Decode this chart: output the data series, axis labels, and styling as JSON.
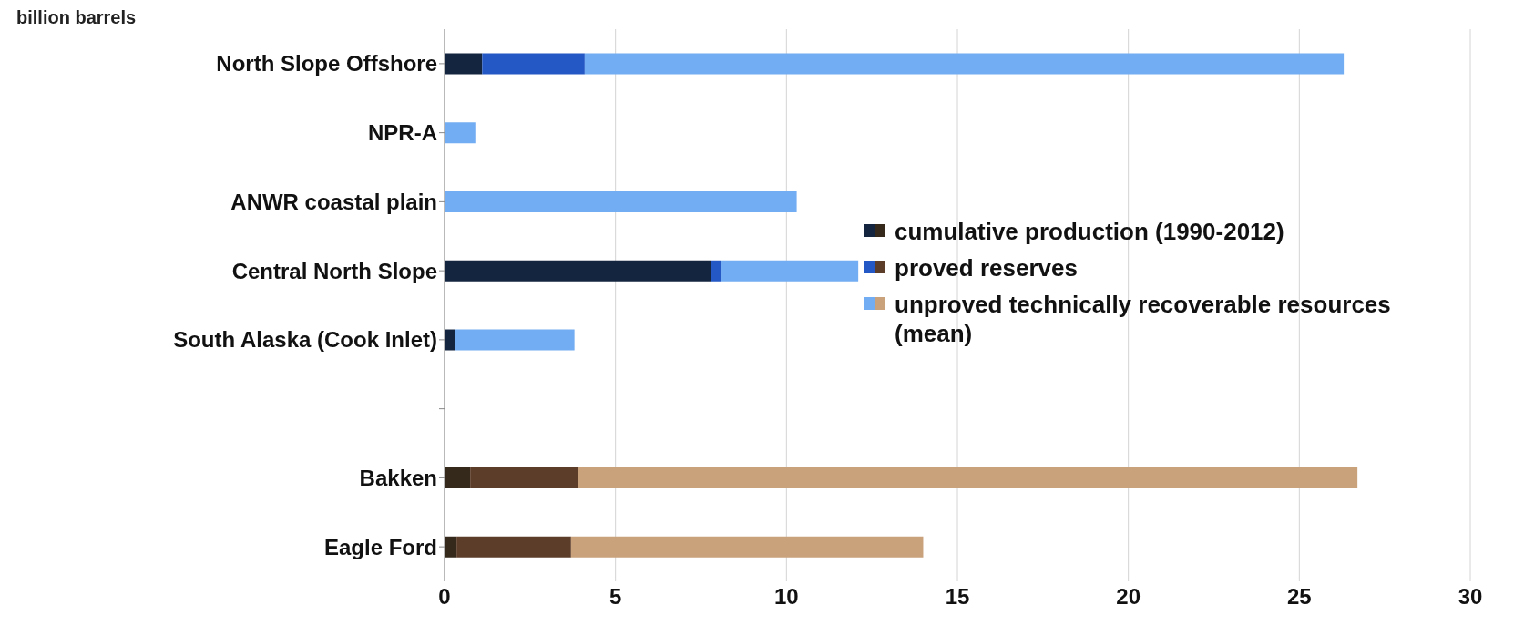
{
  "chart_data": {
    "type": "bar",
    "orientation": "horizontal",
    "stacked": true,
    "title": "billion barrels",
    "categories": [
      "North Slope Offshore",
      "NPR-A",
      "ANWR coastal plain",
      "Central North Slope",
      "South Alaska (Cook Inlet)",
      null,
      "Bakken",
      "Eagle Ford"
    ],
    "series": [
      {
        "name": "cumulative production (1990-2012)",
        "colors": [
          "#14253f",
          "#14253f",
          "#14253f",
          "#14253f",
          "#14253f",
          "#14253f",
          "#35291c",
          "#35291c"
        ],
        "values": [
          1.1,
          0,
          0,
          7.8,
          0.3,
          null,
          0.75,
          0.35
        ]
      },
      {
        "name": "proved reserves",
        "colors": [
          "#2458c4",
          "#2458c4",
          "#2458c4",
          "#2458c4",
          "#2458c4",
          "#2458c4",
          "#5c3d2a",
          "#5c3d2a"
        ],
        "values": [
          3.0,
          0,
          0,
          0.3,
          0,
          null,
          3.15,
          3.35
        ]
      },
      {
        "name": "unproved technically recoverable resources (mean)",
        "colors": [
          "#72acf2",
          "#72acf2",
          "#72acf2",
          "#72acf2",
          "#72acf2",
          "#72acf2",
          "#c9a27c",
          "#c9a27c"
        ],
        "values": [
          22.2,
          0.9,
          10.3,
          4.0,
          3.5,
          null,
          22.8,
          10.3
        ]
      }
    ],
    "xlim": [
      0,
      30
    ],
    "xticks": [
      0,
      5,
      10,
      15,
      20,
      25,
      30
    ],
    "grid": "x",
    "legend": "right"
  }
}
